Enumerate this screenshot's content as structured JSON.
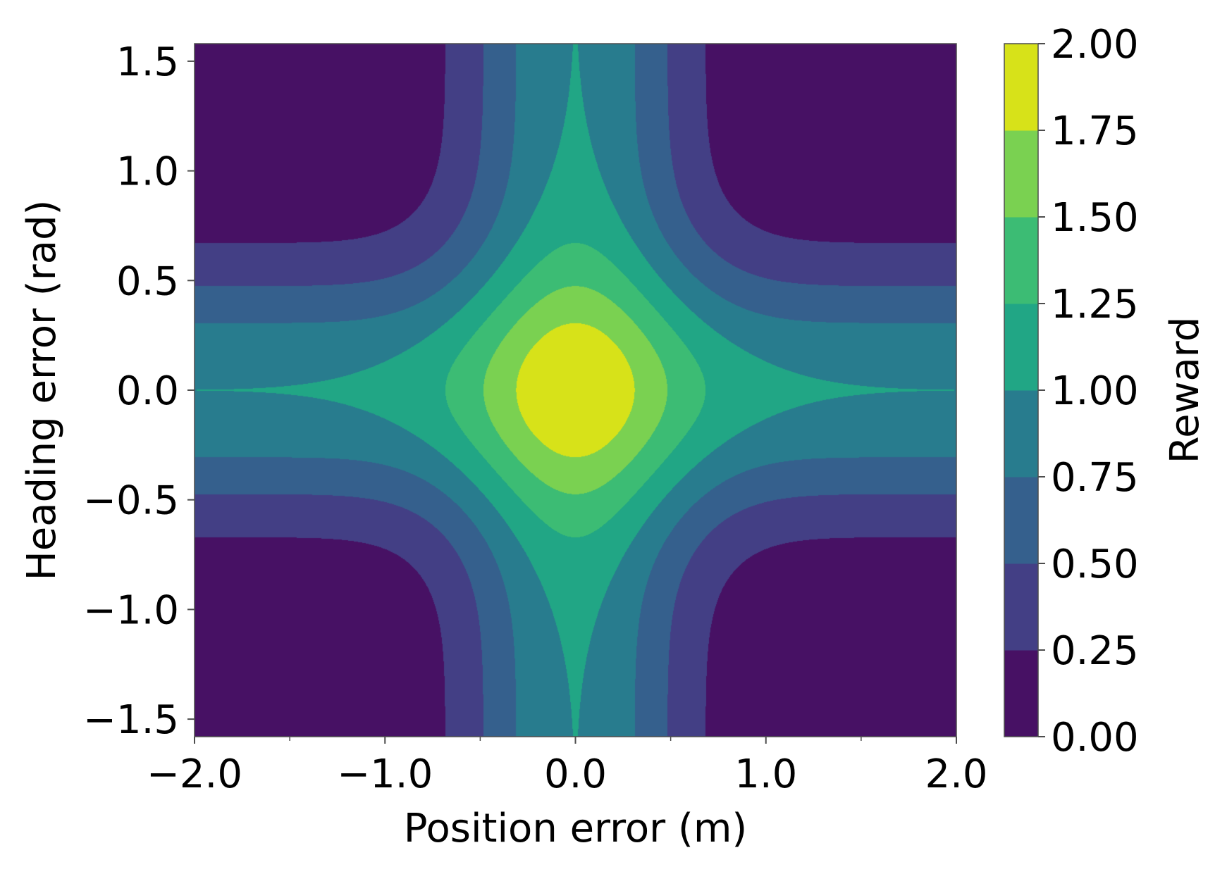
{
  "chart_data": {
    "type": "heatmap",
    "subtype": "filled-contour",
    "title": "",
    "xlabel": "Position error (m)",
    "ylabel": "Heading error (rad)",
    "xlim": [
      -2.0,
      2.0
    ],
    "ylim": [
      -1.58,
      1.58
    ],
    "x_ticks": [
      -2.0,
      -1.0,
      0.0,
      1.0,
      2.0
    ],
    "x_tick_labels": [
      "−2.0",
      "−1.0",
      "0.0",
      "1.0",
      "2.0"
    ],
    "x_minor_ticks": [
      -1.5,
      -0.5,
      0.5,
      1.5
    ],
    "y_ticks": [
      -1.5,
      -1.0,
      -0.5,
      0.0,
      0.5,
      1.0,
      1.5
    ],
    "y_tick_labels": [
      "−1.5",
      "−1.0",
      "−0.5",
      "0.0",
      "0.5",
      "1.0",
      "1.5"
    ],
    "grid": false,
    "colorbar": {
      "label": "Reward",
      "range": [
        0.0,
        2.0
      ],
      "levels": [
        0.0,
        0.25,
        0.5,
        0.75,
        1.0,
        1.25,
        1.5,
        1.75,
        2.0
      ],
      "tick_labels": [
        "0.00",
        "0.25",
        "0.50",
        "0.75",
        "1.00",
        "1.25",
        "1.50",
        "1.75",
        "2.00"
      ],
      "colors": [
        "#471164",
        "#433f85",
        "#35608d",
        "#287c8e",
        "#21a685",
        "#3cbc74",
        "#7ad151",
        "#d7e219"
      ],
      "placement": "right"
    },
    "contour_boundaries": {
      "note_x_half_widths_at_heading_1.5": [
        0.69,
        0.49,
        0.31,
        0.03
      ],
      "y_half_heights_at_position_2.0": [
        0.69,
        0.49,
        0.31
      ],
      "central_region_x_extent": [
        -1.55,
        1.55
      ],
      "inner_levels_x_half_width_at_0": [
        0.68,
        0.49,
        0.29
      ],
      "inner_levels_y_half_height_at_0": [
        0.69,
        0.49,
        0.31
      ]
    }
  }
}
